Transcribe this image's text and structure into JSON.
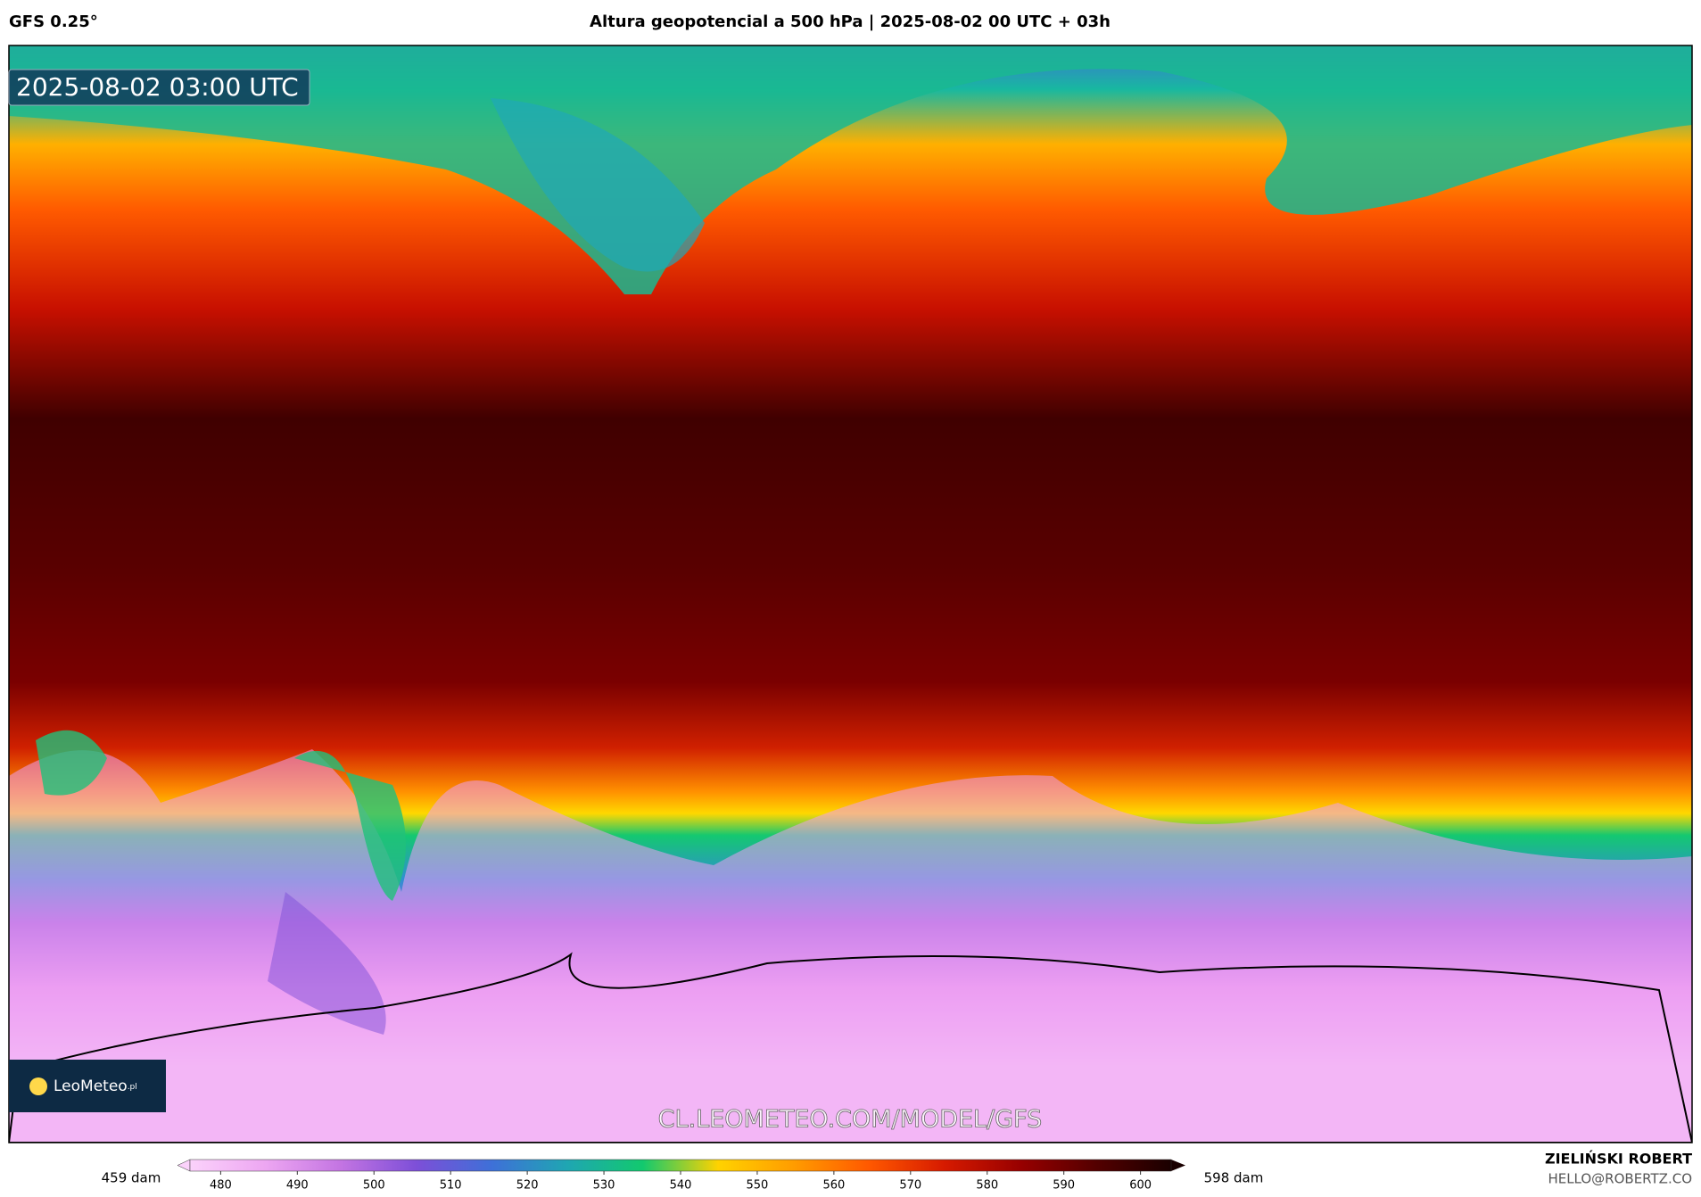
{
  "header": {
    "model": "GFS 0.25°",
    "title": "Altura geopotencial a 500 hPa | 2025-08-02 00 UTC + 03h"
  },
  "map": {
    "timestamp": "2025-08-02 03:00 UTC",
    "logo": "LeoMeteo",
    "logo_suffix": ".pl",
    "watermark": "CL.LEOMETEO.COM/MODEL/GFS"
  },
  "colorbar": {
    "min_label": "459 dam",
    "max_label": "598 dam",
    "range": [
      476,
      604
    ],
    "ticks": [
      480,
      490,
      500,
      510,
      520,
      530,
      540,
      550,
      560,
      570,
      580,
      590,
      600
    ],
    "colors": [
      "#fbd2fb",
      "#eda6f2",
      "#c374e2",
      "#7d4fd8",
      "#3e70d8",
      "#1fa6b2",
      "#12c96e",
      "#ffd200",
      "#ff9c00",
      "#ff5800",
      "#d61a00",
      "#980000",
      "#540000",
      "#1a0000"
    ]
  },
  "footer": {
    "author": "ZIELIŃSKI ROBERT",
    "email": "HELLO@ROBERTZ.CO"
  }
}
